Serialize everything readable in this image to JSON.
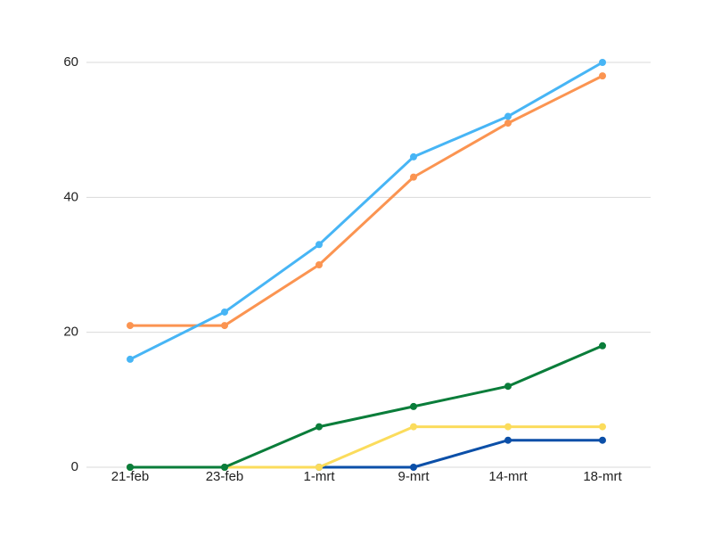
{
  "chart_data": {
    "type": "line",
    "categories": [
      "21-feb",
      "23-feb",
      "1-mrt",
      "9-mrt",
      "14-mrt",
      "18-mrt"
    ],
    "series": [
      {
        "color": "#0b4fa8",
        "values": [
          0,
          0,
          0,
          0,
          4,
          4
        ]
      },
      {
        "color": "#fbdc5c",
        "values": [
          0,
          0,
          0,
          6,
          6,
          6
        ]
      },
      {
        "color": "#0a7d3a",
        "values": [
          0,
          0,
          6,
          9,
          12,
          18
        ]
      },
      {
        "color": "#fb9451",
        "values": [
          21,
          21,
          30,
          43,
          51,
          58
        ]
      },
      {
        "color": "#47b5f5",
        "values": [
          16,
          23,
          33,
          46,
          52,
          60
        ]
      }
    ],
    "ylim": [
      0,
      60
    ],
    "yticks": [
      0,
      20,
      40,
      60
    ],
    "grid": true
  }
}
